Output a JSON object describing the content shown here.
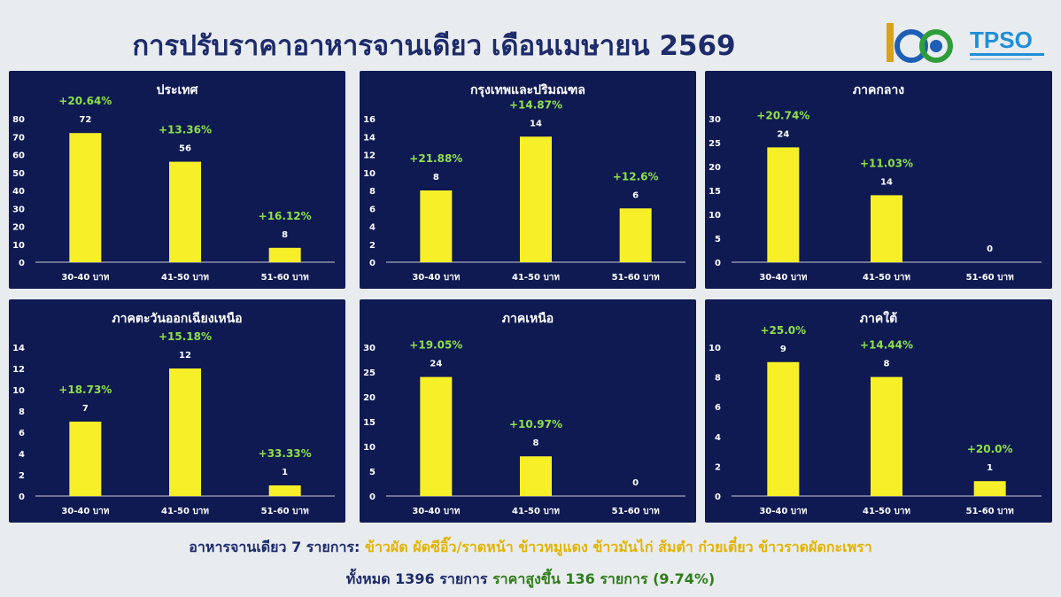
{
  "header": {
    "title": "การปรับราคาอาหารจานเดียว เดือนเมษายน 2569",
    "logo_number": "105",
    "logo_brand": "TPSO"
  },
  "colors": {
    "panel_bg": "#0f1a52",
    "bar": "#f7f029",
    "pct_label": "#8ee04a",
    "title": "#1d2b6b"
  },
  "chart_data": [
    {
      "type": "bar",
      "title": "ประเทศ",
      "categories": [
        "30-40 บาท",
        "41-50 บาท",
        "51-60 บาท"
      ],
      "values": [
        72,
        56,
        8
      ],
      "value_labels": [
        "72",
        "56",
        "8"
      ],
      "pct_labels": [
        "+20.64%",
        "+13.36%",
        "+16.12%"
      ],
      "ylim": [
        0,
        80
      ],
      "yticks": [
        0,
        10,
        20,
        30,
        40,
        50,
        60,
        70,
        80
      ]
    },
    {
      "type": "bar",
      "title": "กรุงเทพและปริมณฑล",
      "categories": [
        "30-40 บาท",
        "41-50 บาท",
        "51-60 บาท"
      ],
      "values": [
        8,
        14,
        6
      ],
      "value_labels": [
        "8",
        "14",
        "6"
      ],
      "pct_labels": [
        "+21.88%",
        "+14.87%",
        "+12.6%"
      ],
      "ylim": [
        0,
        16
      ],
      "yticks": [
        0,
        2,
        4,
        6,
        8,
        10,
        12,
        14,
        16
      ]
    },
    {
      "type": "bar",
      "title": "ภาคกลาง",
      "categories": [
        "30-40 บาท",
        "41-50 บาท",
        "51-60 บาท"
      ],
      "values": [
        24,
        14,
        0
      ],
      "value_labels": [
        "24",
        "14",
        "0"
      ],
      "pct_labels": [
        "+20.74%",
        "+11.03%",
        ""
      ],
      "ylim": [
        0,
        30
      ],
      "yticks": [
        0,
        5,
        10,
        15,
        20,
        25,
        30
      ]
    },
    {
      "type": "bar",
      "title": "ภาคตะวันออกเฉียงเหนือ",
      "categories": [
        "30-40 บาท",
        "41-50 บาท",
        "51-60 บาท"
      ],
      "values": [
        7,
        12,
        1
      ],
      "value_labels": [
        "7",
        "12",
        "1"
      ],
      "pct_labels": [
        "+18.73%",
        "+15.18%",
        "+33.33%"
      ],
      "ylim": [
        0,
        14
      ],
      "yticks": [
        0,
        2,
        4,
        6,
        8,
        10,
        12,
        14
      ]
    },
    {
      "type": "bar",
      "title": "ภาคเหนือ",
      "categories": [
        "30-40 บาท",
        "41-50 บาท",
        "51-60 บาท"
      ],
      "values": [
        24,
        8,
        0
      ],
      "value_labels": [
        "24",
        "8",
        "0"
      ],
      "pct_labels": [
        "+19.05%",
        "+10.97%",
        ""
      ],
      "ylim": [
        0,
        30
      ],
      "yticks": [
        0,
        5,
        10,
        15,
        20,
        25,
        30
      ]
    },
    {
      "type": "bar",
      "title": "ภาคใต้",
      "categories": [
        "30-40 บาท",
        "41-50 บาท",
        "51-60 บาท"
      ],
      "values": [
        9,
        8,
        1
      ],
      "value_labels": [
        "9",
        "8",
        "1"
      ],
      "pct_labels": [
        "+25.0%",
        "+14.44%",
        "+20.0%"
      ],
      "ylim": [
        0,
        10
      ],
      "yticks": [
        0,
        2,
        4,
        6,
        8,
        10
      ]
    }
  ],
  "footer": {
    "line1_label": "อาหารจานเดียว 7 รายการ:",
    "line1_items": "ข้าวผัด ผัดซีอิ๊ว/ราดหน้า ข้าวหมูแดง ข้าวมันไก่ ส้มตำ ก๋วยเตี๋ยว ข้าวราดผัดกะเพรา",
    "line2_total": "ทั้งหมด 1396 รายการ",
    "line2_increase": "ราคาสูงขึ้น 136 รายการ (9.74%)"
  }
}
